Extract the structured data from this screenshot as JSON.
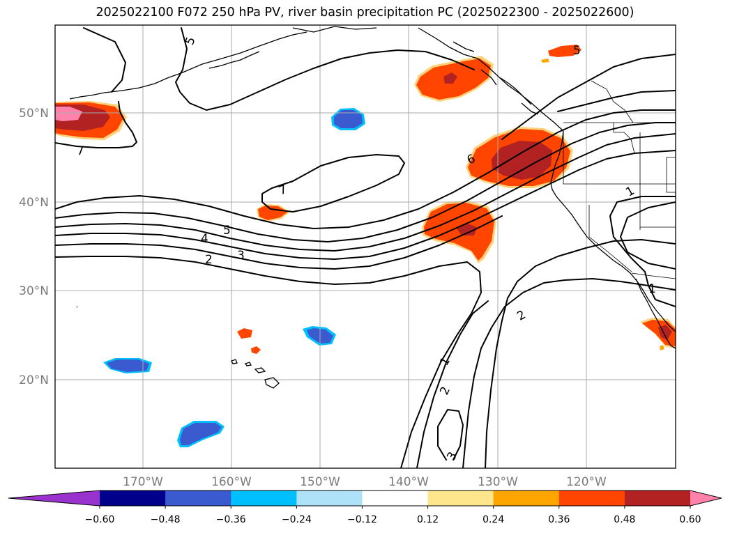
{
  "title": "2025022100 F072 250 hPa PV, river basin precipitation PC (2025022300 - 2025022600)",
  "lat_ticks": [
    "50°N",
    "40°N",
    "30°N",
    "20°N"
  ],
  "lon_ticks": [
    "170°W",
    "160°W",
    "150°W",
    "140°W",
    "130°W",
    "120°W"
  ],
  "colorbar": {
    "colors": [
      "#9a32cd",
      "#00008b",
      "#3a5bd0",
      "#00bfff",
      "#ade2f8",
      "#ffffff",
      "#fde68c",
      "#ffa500",
      "#ff4500",
      "#b22222",
      "#ff82ab"
    ],
    "ticks": [
      "−0.60",
      "−0.48",
      "−0.36",
      "−0.24",
      "−0.12",
      "0.12",
      "0.24",
      "0.36",
      "0.48",
      "0.60"
    ]
  },
  "contour_labels": [
    "5",
    "7",
    "7",
    "6",
    "5",
    "4",
    "3",
    "2",
    "1",
    "1",
    "2",
    "1",
    "2",
    "3",
    "5"
  ]
}
